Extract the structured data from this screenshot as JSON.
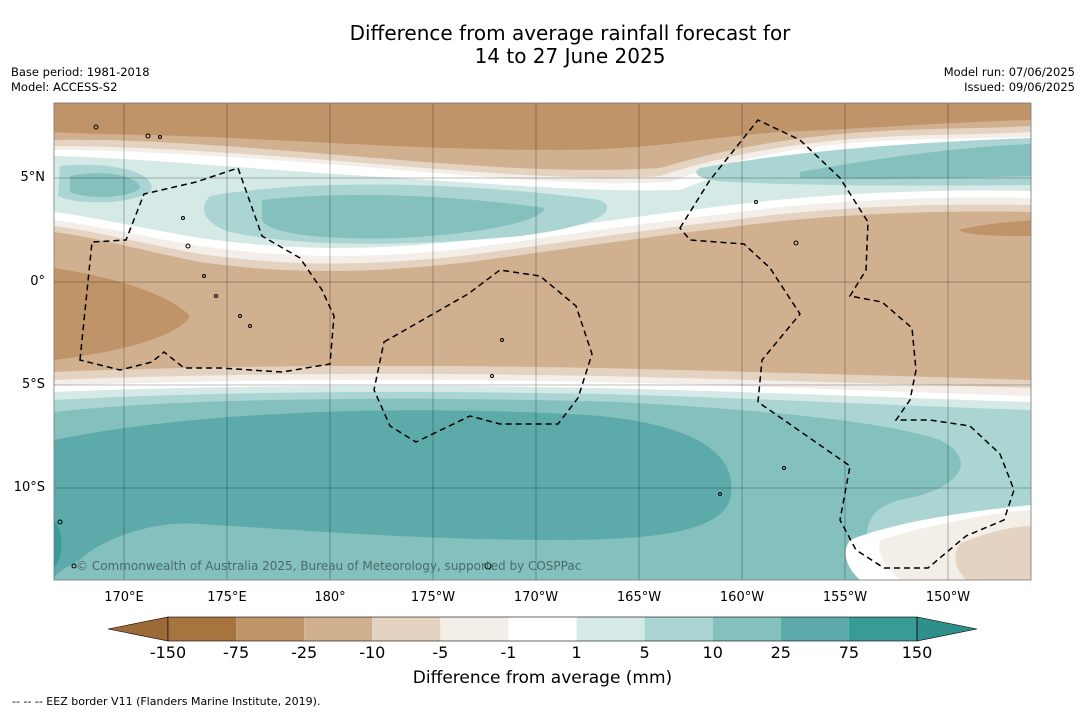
{
  "title": {
    "line1": "Difference from average rainfall forecast for",
    "line2": "14 to 27 June 2025"
  },
  "meta": {
    "base_period": "Base period: 1981-2018",
    "model": "Model: ACCESS-S2",
    "model_run": "Model run: 07/06/2025",
    "issued": "Issued: 09/06/2025"
  },
  "map": {
    "latitude_labels": [
      "5°N",
      "0°",
      "5°S",
      "10°S"
    ],
    "longitude_labels": [
      "170°E",
      "175°E",
      "180°",
      "175°W",
      "170°W",
      "165°W",
      "160°W",
      "155°W",
      "150°W"
    ],
    "copyright": "© Commonwealth of Australia 2025, Bureau of Meteorology, supported by COSPPac",
    "colors": {
      "dry_150": "#a6743f",
      "dry_75": "#c09469",
      "dry_25": "#d1b08f",
      "dry_10": "#e4d3c0",
      "dry_5": "#f3eee8",
      "neutral": "#ffffff",
      "wet_5": "#d5e9e7",
      "wet_10": "#aad5d2",
      "wet_25": "#84c0bd",
      "wet_75": "#5cabaa",
      "wet_150": "#389b96"
    }
  },
  "colorbar": {
    "ticks": [
      "-150",
      "-75",
      "-25",
      "-10",
      "-5",
      "-1",
      "1",
      "5",
      "10",
      "25",
      "75",
      "150"
    ],
    "title": "Difference from average (mm)",
    "colors": [
      "#a6743f",
      "#c09469",
      "#d1b08f",
      "#e4d3c0",
      "#f3eee8",
      "#ffffff",
      "#d5e9e7",
      "#aad5d2",
      "#84c0bd",
      "#5cabaa",
      "#389b96"
    ],
    "end_low": "#9c6a38",
    "end_high": "#2f8f8a"
  },
  "legend": {
    "text": "--  --  -- EEZ border V11 (Flanders Marine Institute, 2019)."
  }
}
